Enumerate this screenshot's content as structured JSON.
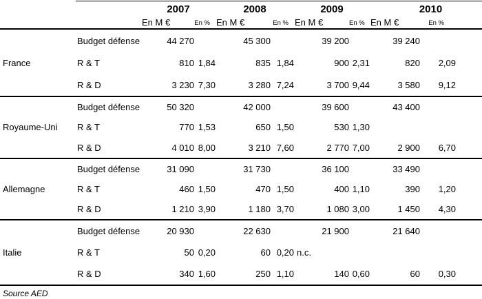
{
  "header": {
    "years": [
      "2007",
      "2008",
      "2009",
      "2010"
    ],
    "unit_meur": "En M €",
    "unit_pct": "En %"
  },
  "groups": [
    {
      "country": "France",
      "rows": [
        {
          "label": "Budget défense",
          "values": [
            "44 270",
            "",
            "45 300",
            "",
            "39 200",
            "",
            "39 240",
            ""
          ]
        },
        {
          "label": "R & T",
          "values": [
            "810",
            "1,84",
            "835",
            "1,84",
            "900",
            "2,31",
            "820",
            "2,09"
          ]
        },
        {
          "label": "R & D",
          "values": [
            "3 230",
            "7,30",
            "3 280",
            "7,24",
            "3 700",
            "9,44",
            "3 580",
            "9,12"
          ]
        }
      ]
    },
    {
      "country": "Royaume-Uni",
      "rows": [
        {
          "label": "Budget défense",
          "values": [
            "50 320",
            "",
            "42 000",
            "",
            "39 600",
            "",
            "43 400",
            ""
          ]
        },
        {
          "label": "R & T",
          "values": [
            "770",
            "1,53",
            "650",
            "1,50",
            "530",
            "1,30",
            "",
            ""
          ]
        },
        {
          "label": "R & D",
          "values": [
            "4 010",
            "8,00",
            "3 210",
            "7,60",
            "2 770",
            "7,00",
            "2 900",
            "6,70"
          ]
        }
      ]
    },
    {
      "country": "Allemagne",
      "rows": [
        {
          "label": "Budget défense",
          "values": [
            "31 090",
            "",
            "31 730",
            "",
            "36 100",
            "",
            "33 490",
            ""
          ]
        },
        {
          "label": "R & T",
          "values": [
            "460",
            "1,50",
            "470",
            "1,50",
            "400",
            "1,10",
            "390",
            "1,20"
          ]
        },
        {
          "label": "R & D",
          "values": [
            "1 210",
            "3,90",
            "1 180",
            "3,70",
            "1 080",
            "3,00",
            "1 450",
            "4,30"
          ]
        }
      ]
    },
    {
      "country": "Italie",
      "rows": [
        {
          "label": "Budget défense",
          "values": [
            "20 930",
            "",
            "22 630",
            "",
            "21 900",
            "",
            "21 640",
            ""
          ]
        },
        {
          "label": "R & T",
          "values": [
            "50",
            "0,20",
            "60",
            "0,20",
            "n.c.",
            "",
            "",
            ""
          ]
        },
        {
          "label": "R & D",
          "values": [
            "340",
            "1,60",
            "250",
            "1,10",
            "140",
            "0,60",
            "60",
            "0,30"
          ]
        }
      ]
    }
  ],
  "source": "Source AED"
}
